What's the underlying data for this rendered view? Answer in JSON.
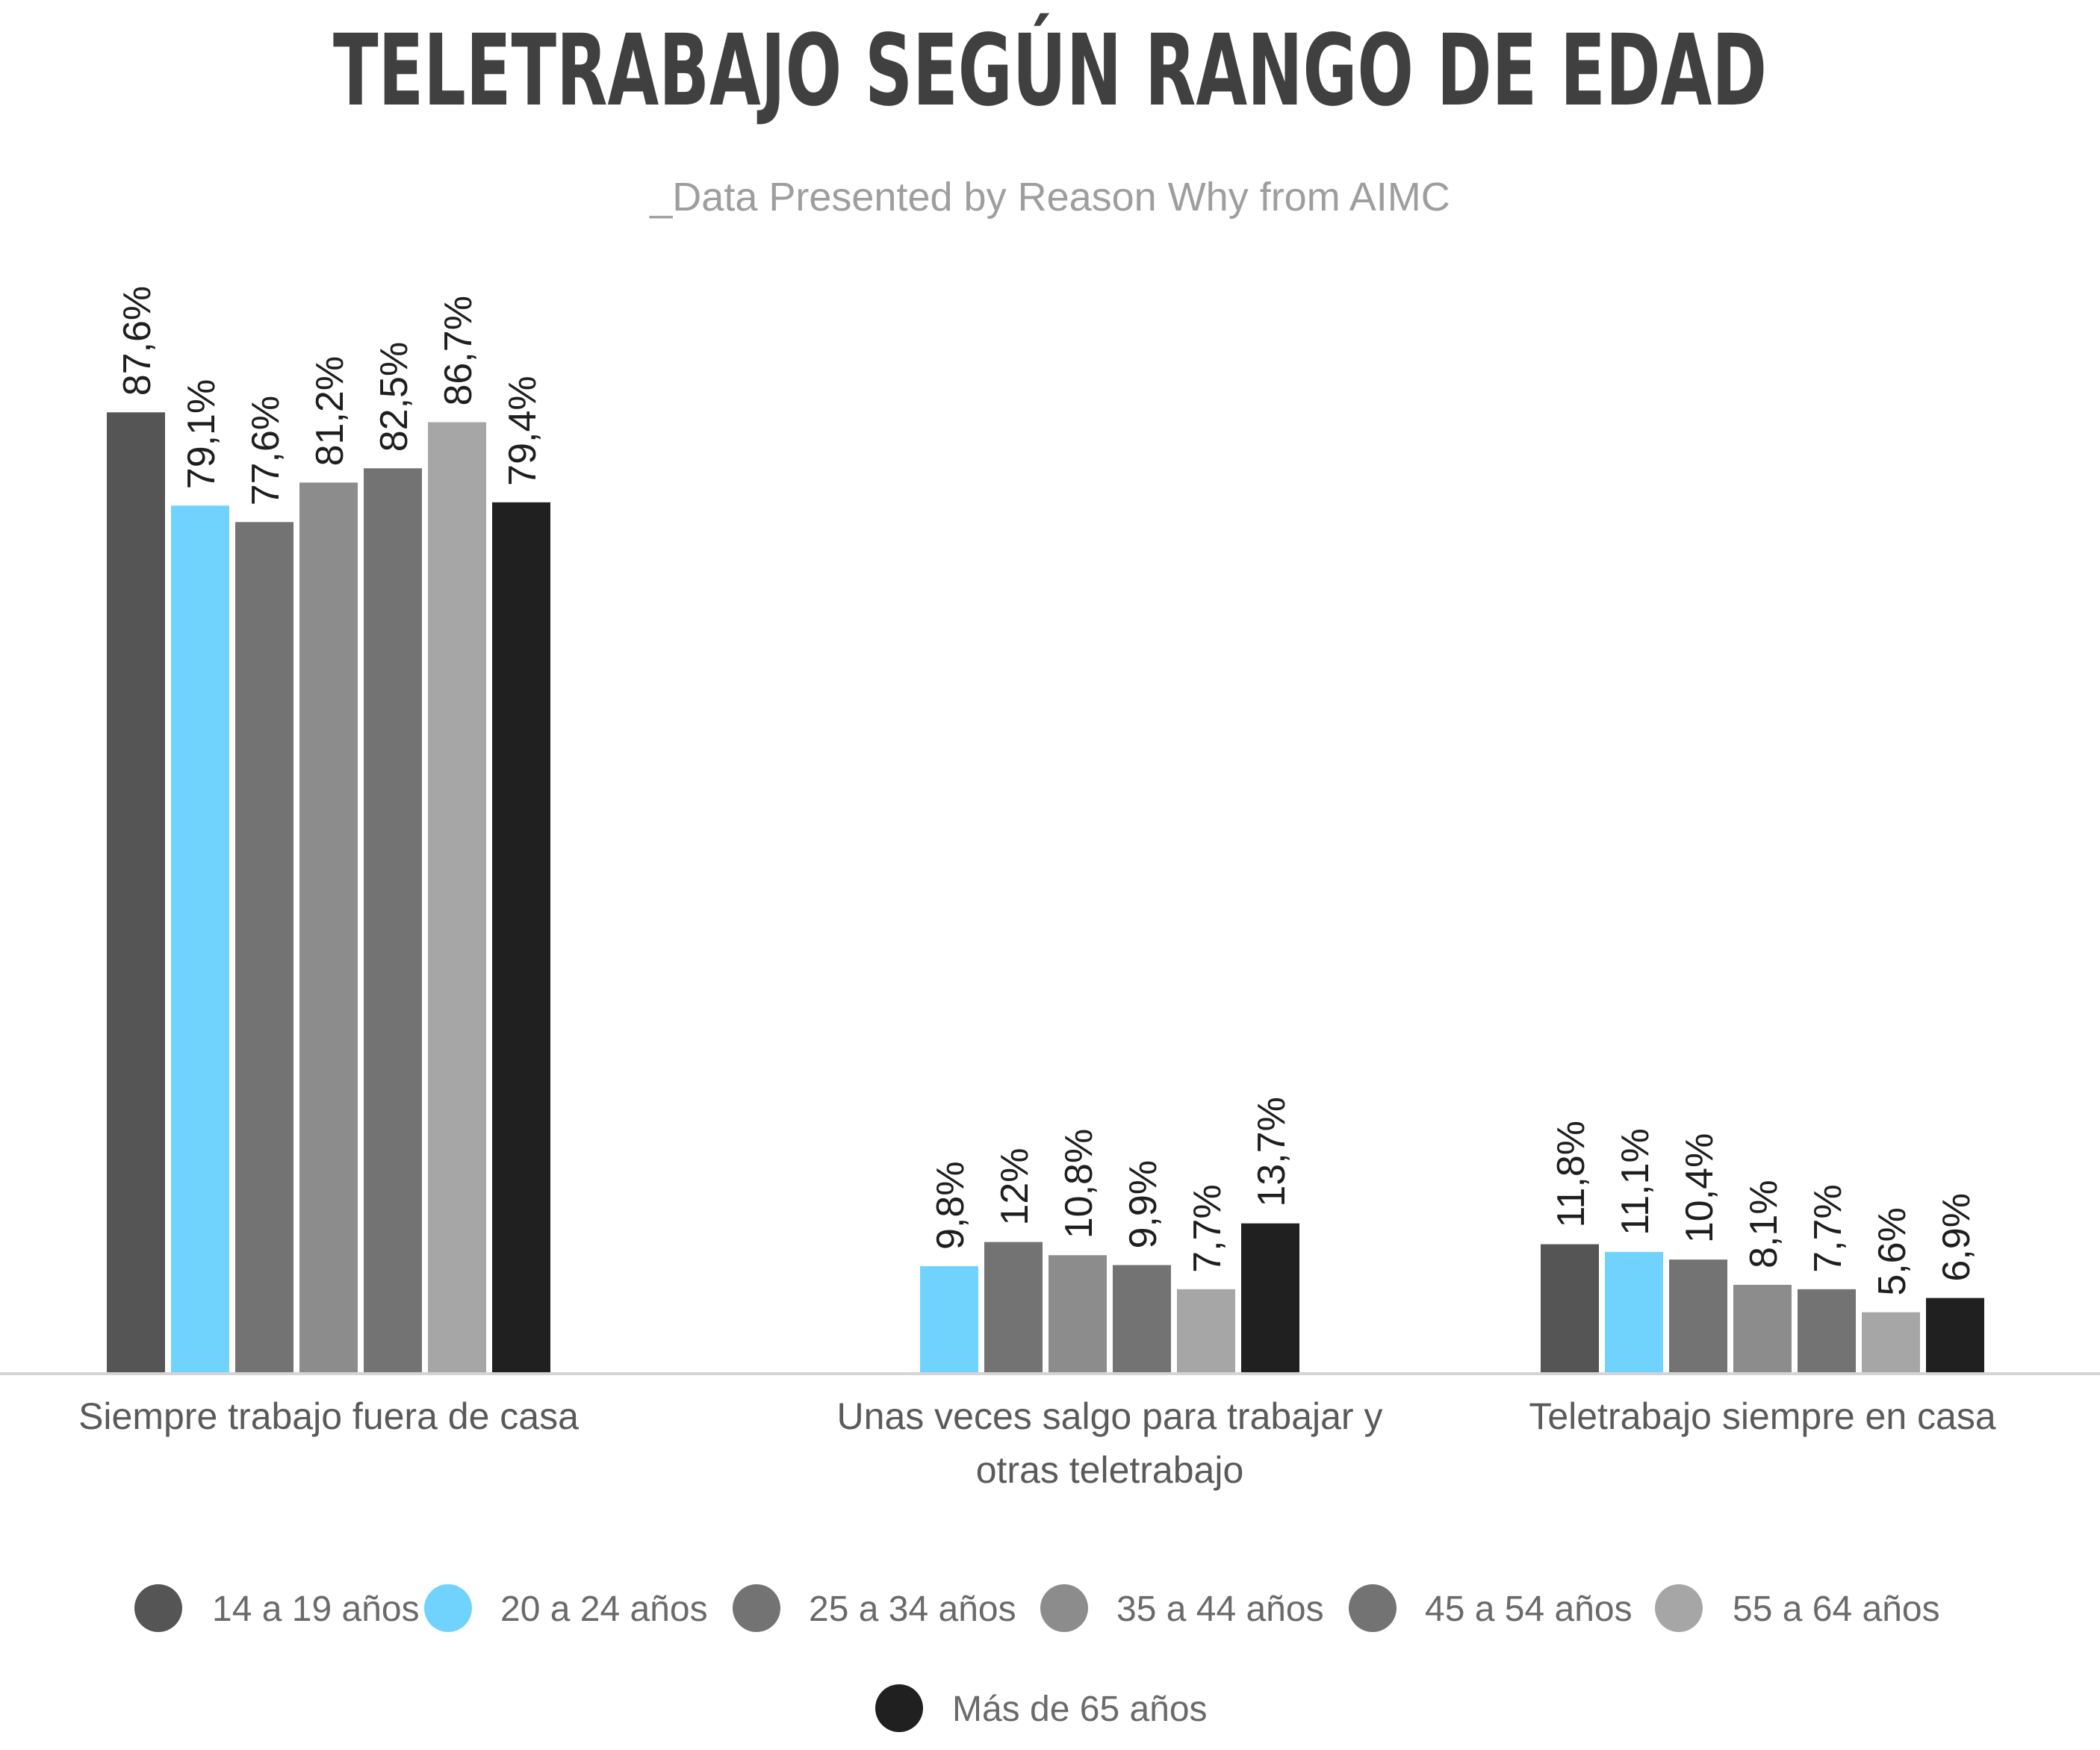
{
  "chart_data": {
    "type": "bar",
    "title": "TELETRABAJO SEGÚN RANGO DE EDAD",
    "subtitle": "_Data Presented by Reason Why from AIMC",
    "categories": [
      "Siempre trabajo fuera de casa",
      "Unas veces salgo para trabajar y otras teletrabajo",
      "Teletrabajo siempre en casa"
    ],
    "series": [
      {
        "name": "14 a 19 años",
        "color": "#555555",
        "values": [
          87.6,
          null,
          11.8
        ],
        "labels": [
          "87,6%",
          "",
          "11,8%"
        ]
      },
      {
        "name": "20 a 24 años",
        "color": "#6fd3fe",
        "values": [
          79.1,
          9.8,
          11.1
        ],
        "labels": [
          "79,1%",
          "9,8%",
          "11,1%"
        ]
      },
      {
        "name": "25 a 34 años",
        "color": "#737373",
        "values": [
          77.6,
          12.0,
          10.4
        ],
        "labels": [
          "77,6%",
          "12%",
          "10,4%"
        ]
      },
      {
        "name": "35 a 44 años",
        "color": "#8c8c8c",
        "values": [
          81.2,
          10.8,
          8.1
        ],
        "labels": [
          "81,2%",
          "10,8%",
          "8,1%"
        ]
      },
      {
        "name": "45 a 54 años",
        "color": "#737373",
        "values": [
          82.5,
          9.9,
          7.7
        ],
        "labels": [
          "82,5%",
          "9,9%",
          "7,7%"
        ]
      },
      {
        "name": "55 a 64 años",
        "color": "#a6a6a6",
        "values": [
          86.7,
          7.7,
          5.6
        ],
        "labels": [
          "86,7%",
          "7,7%",
          "5,6%"
        ]
      },
      {
        "name": "Más de 65 años",
        "color": "#202020",
        "values": [
          79.4,
          13.7,
          6.9
        ],
        "labels": [
          "79,4%",
          "13,7%",
          "6,9%"
        ]
      }
    ],
    "ylim": [
      0,
      100
    ],
    "grid": false,
    "legend_position": "bottom"
  }
}
